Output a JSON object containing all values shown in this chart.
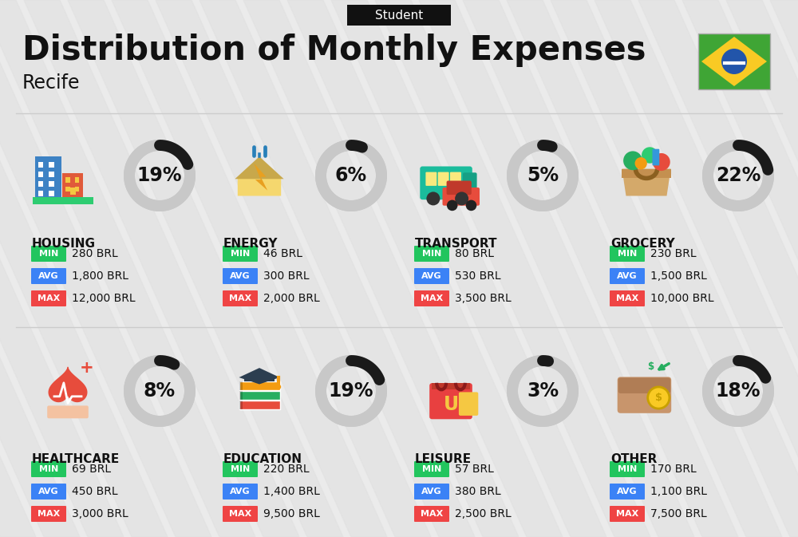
{
  "title": "Distribution of Monthly Expenses",
  "subtitle": "Student",
  "city": "Recife",
  "background_color": "#ebebeb",
  "categories": [
    {
      "name": "HOUSING",
      "percent": 19,
      "min": "280 BRL",
      "avg": "1,800 BRL",
      "max": "12,000 BRL",
      "row": 0,
      "col": 0
    },
    {
      "name": "ENERGY",
      "percent": 6,
      "min": "46 BRL",
      "avg": "300 BRL",
      "max": "2,000 BRL",
      "row": 0,
      "col": 1
    },
    {
      "name": "TRANSPORT",
      "percent": 5,
      "min": "80 BRL",
      "avg": "530 BRL",
      "max": "3,500 BRL",
      "row": 0,
      "col": 2
    },
    {
      "name": "GROCERY",
      "percent": 22,
      "min": "230 BRL",
      "avg": "1,500 BRL",
      "max": "10,000 BRL",
      "row": 0,
      "col": 3
    },
    {
      "name": "HEALTHCARE",
      "percent": 8,
      "min": "69 BRL",
      "avg": "450 BRL",
      "max": "3,000 BRL",
      "row": 1,
      "col": 0
    },
    {
      "name": "EDUCATION",
      "percent": 19,
      "min": "220 BRL",
      "avg": "1,400 BRL",
      "max": "9,500 BRL",
      "row": 1,
      "col": 1
    },
    {
      "name": "LEISURE",
      "percent": 3,
      "min": "57 BRL",
      "avg": "380 BRL",
      "max": "2,500 BRL",
      "row": 1,
      "col": 2
    },
    {
      "name": "OTHER",
      "percent": 18,
      "min": "170 BRL",
      "avg": "1,100 BRL",
      "max": "7,500 BRL",
      "row": 1,
      "col": 3
    }
  ],
  "min_color": "#22c55e",
  "avg_color": "#3b82f6",
  "max_color": "#ef4444",
  "circle_dark": "#1a1a1a",
  "circle_light": "#c8c8c8",
  "stripe_color": "#e0e0e0",
  "title_fontsize": 30,
  "subtitle_fontsize": 11,
  "city_fontsize": 17,
  "cat_fontsize": 11,
  "pct_fontsize": 17,
  "val_fontsize": 10,
  "badge_fontsize": 8
}
